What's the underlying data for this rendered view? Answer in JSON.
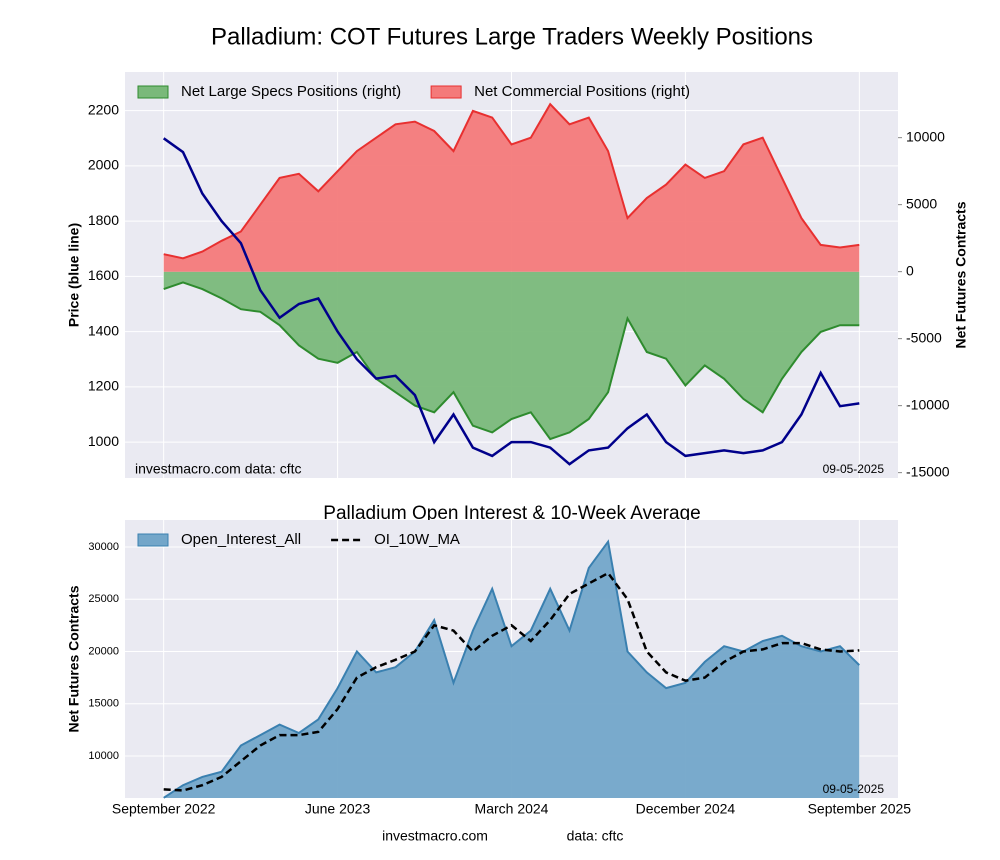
{
  "chart_data": [
    {
      "type": "line",
      "title": "Palladium: COT Futures Large Traders Weekly Positions",
      "ylabel": "Price (blue line)",
      "y2label": "Net Futures Contracts",
      "annotations": [
        "investmacro.com   data: cftc",
        "09-05-2025"
      ],
      "x": [
        "2022-09",
        "2022-10",
        "2022-11",
        "2022-12",
        "2023-01",
        "2023-02",
        "2023-03",
        "2023-04",
        "2023-05",
        "2023-06",
        "2023-07",
        "2023-08",
        "2023-09",
        "2023-10",
        "2023-11",
        "2023-12",
        "2024-01",
        "2024-02",
        "2024-03",
        "2024-04",
        "2024-05",
        "2024-06",
        "2024-07",
        "2024-08",
        "2024-09",
        "2024-10",
        "2024-11",
        "2024-12",
        "2025-01",
        "2025-02",
        "2025-03",
        "2025-04",
        "2025-05",
        "2025-06",
        "2025-07",
        "2025-08",
        "2025-09"
      ],
      "xlim": [
        "2022-07",
        "2025-11"
      ],
      "ylim": [
        870,
        2340
      ],
      "yticks": [
        1000,
        1200,
        1400,
        1600,
        1800,
        2000,
        2200
      ],
      "y2lim": [
        -15400,
        14900
      ],
      "y2ticks": [
        -15000,
        -10000,
        -5000,
        0,
        5000,
        10000
      ],
      "grid": true,
      "legend": "upper left",
      "series": [
        {
          "name": "Net Large Specs Positions (right)",
          "style": "area",
          "axis": "y2",
          "color": "#7ab97a",
          "edge": "#2e8b2e",
          "values": [
            -1300,
            -800,
            -1300,
            -2000,
            -2800,
            -3000,
            -4000,
            -5500,
            -6500,
            -6800,
            -6000,
            -8000,
            -9000,
            -10000,
            -10500,
            -9000,
            -11500,
            -12000,
            -11000,
            -10500,
            -12500,
            -12000,
            -11000,
            -9000,
            -3500,
            -6000,
            -6500,
            -8500,
            -7000,
            -8000,
            -9500,
            -10500,
            -8000,
            -6000,
            -4500,
            -4000,
            -4000
          ]
        },
        {
          "name": "Net Commercial Positions (right)",
          "style": "area",
          "axis": "y2",
          "color": "#f47a7a",
          "edge": "#e83030",
          "values": [
            1300,
            1000,
            1500,
            2300,
            3000,
            5000,
            7000,
            7300,
            6000,
            7500,
            9000,
            10000,
            11000,
            11200,
            10500,
            9000,
            12000,
            11500,
            9500,
            10000,
            12500,
            11000,
            11500,
            9000,
            4000,
            5500,
            6500,
            8000,
            7000,
            7500,
            9500,
            10000,
            7000,
            4000,
            2000,
            1800,
            2000
          ]
        },
        {
          "style": "line",
          "axis": "y",
          "color": "#00008b",
          "values": [
            2100,
            2050,
            1900,
            1800,
            1720,
            1550,
            1450,
            1500,
            1520,
            1400,
            1300,
            1230,
            1240,
            1170,
            1000,
            1100,
            980,
            950,
            1000,
            1000,
            980,
            920,
            970,
            980,
            1050,
            1100,
            1000,
            950,
            960,
            970,
            960,
            970,
            1000,
            1100,
            1250,
            1130,
            1140
          ]
        }
      ]
    },
    {
      "type": "line",
      "title": "Palladium Open Interest & 10-Week Average",
      "ylabel": "Net Futures Contracts",
      "annotations": [
        "09-05-2025"
      ],
      "x": [
        "2022-09",
        "2022-10",
        "2022-11",
        "2022-12",
        "2023-01",
        "2023-02",
        "2023-03",
        "2023-04",
        "2023-05",
        "2023-06",
        "2023-07",
        "2023-08",
        "2023-09",
        "2023-10",
        "2023-11",
        "2023-12",
        "2024-01",
        "2024-02",
        "2024-03",
        "2024-04",
        "2024-05",
        "2024-06",
        "2024-07",
        "2024-08",
        "2024-09",
        "2024-10",
        "2024-11",
        "2024-12",
        "2025-01",
        "2025-02",
        "2025-03",
        "2025-04",
        "2025-05",
        "2025-06",
        "2025-07",
        "2025-08",
        "2025-09"
      ],
      "xlim": [
        "2022-07",
        "2025-11"
      ],
      "xticks": [
        {
          "value": "2022-09",
          "label": "September 2022"
        },
        {
          "value": "2023-06",
          "label": "June 2023"
        },
        {
          "value": "2024-03",
          "label": "March 2024"
        },
        {
          "value": "2024-12",
          "label": "December 2024"
        },
        {
          "value": "2025-09",
          "label": "September 2025"
        }
      ],
      "ylim": [
        5980,
        32580
      ],
      "yticks": [
        10000,
        15000,
        20000,
        25000,
        30000
      ],
      "grid": true,
      "legend": "upper left",
      "series": [
        {
          "name": "Open_Interest_All",
          "style": "area",
          "axis": "y",
          "color": "#73a6c9",
          "edge": "#3a80b0",
          "values": [
            6000,
            7200,
            8000,
            8500,
            11000,
            12000,
            13000,
            12200,
            13500,
            16500,
            20000,
            18000,
            18500,
            20000,
            23000,
            17000,
            22000,
            26000,
            20500,
            22000,
            26000,
            22000,
            28000,
            30500,
            20000,
            18000,
            16500,
            17000,
            19000,
            20500,
            20000,
            21000,
            21500,
            20500,
            20000,
            20500,
            18700
          ]
        },
        {
          "name": "OI_10W_MA",
          "style": "dashed",
          "axis": "y",
          "color": "#000000",
          "values": [
            6800,
            6700,
            7200,
            8000,
            9500,
            11000,
            12000,
            12000,
            12300,
            14500,
            17500,
            18500,
            19200,
            20000,
            22500,
            22000,
            20000,
            21500,
            22500,
            21000,
            23000,
            25500,
            26500,
            27500,
            25000,
            20000,
            18000,
            17200,
            17500,
            19000,
            20000,
            20200,
            20800,
            20800,
            20200,
            20000,
            20100
          ]
        }
      ]
    }
  ],
  "footer": [
    "investmacro.com",
    "data: cftc"
  ]
}
